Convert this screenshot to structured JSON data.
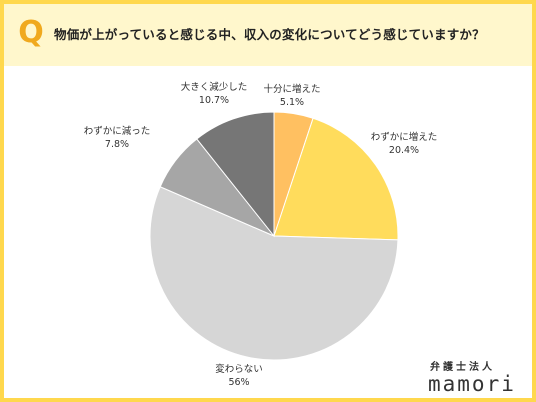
{
  "header": {
    "q_label": "Q",
    "title": "物価が上がっていると感じる中、収入の変化についてどう感じていますか？"
  },
  "brand": {
    "subtitle": "弁護士法人",
    "name": "mamori"
  },
  "chart_data": {
    "type": "pie",
    "title": "",
    "slices": [
      {
        "label": "十分に増えた",
        "value": 5.1,
        "value_label": "5.1%",
        "color": "#ffc061"
      },
      {
        "label": "わずかに増えた",
        "value": 20.4,
        "value_label": "20.4%",
        "color": "#ffdc5c"
      },
      {
        "label": "変わらない",
        "value": 56,
        "value_label": "56%",
        "color": "#d6d6d6"
      },
      {
        "label": "わずかに減った",
        "value": 7.8,
        "value_label": "7.8%",
        "color": "#a6a6a6"
      },
      {
        "label": "大きく減少した",
        "value": 10.7,
        "value_label": "10.7%",
        "color": "#767676"
      }
    ],
    "start_angle_deg": 0,
    "direction": "clockwise",
    "legend": "none"
  }
}
